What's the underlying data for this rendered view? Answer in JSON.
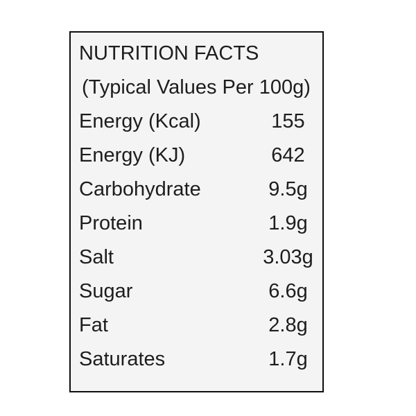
{
  "label": {
    "title": "NUTRITION FACTS",
    "subtitle": "(Typical Values Per 100g)",
    "rows": [
      {
        "name": "Energy (Kcal)",
        "value": "155"
      },
      {
        "name": "Energy (KJ)",
        "value": "642"
      },
      {
        "name": "Carbohydrate",
        "value": "9.5g"
      },
      {
        "name": "Protein",
        "value": "1.9g"
      },
      {
        "name": "Salt",
        "value": "3.03g"
      },
      {
        "name": "Sugar",
        "value": "6.6g"
      },
      {
        "name": "Fat",
        "value": "2.8g"
      },
      {
        "name": "Saturates",
        "value": "1.7g"
      }
    ],
    "colors": {
      "page_background": "#ffffff",
      "panel_background": "#f4f4f4",
      "border": "#0d0d0d",
      "text": "#1d1d1d"
    }
  }
}
